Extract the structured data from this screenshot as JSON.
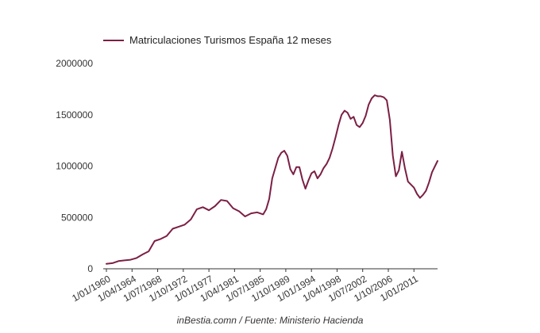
{
  "chart_data": {
    "type": "line",
    "title": "",
    "xlabel": "",
    "ylabel": "",
    "source": "inBestia.comn / Fuente: Ministerio Hacienda",
    "legend": {
      "position": "top-left"
    },
    "grid": false,
    "ylim": [
      0,
      2000000
    ],
    "xlim": [
      "1960-01",
      "2014-12"
    ],
    "y_ticks": [
      0,
      500000,
      1000000,
      1500000,
      2000000
    ],
    "y_tick_labels": [
      "0",
      "500000",
      "1000000",
      "1500000",
      "2000000"
    ],
    "x_ticks": [
      "1960-01",
      "1964-04",
      "1968-07",
      "1972-10",
      "1977-01",
      "1981-04",
      "1985-07",
      "1989-10",
      "1994-01",
      "1998-04",
      "2002-07",
      "2006-10",
      "2011-01"
    ],
    "x_tick_labels": [
      "1/01/1960",
      "1/04/1964",
      "1/07/1968",
      "1/10/1972",
      "1/01/1977",
      "1/04/1981",
      "1/07/1985",
      "1/10/1989",
      "1/01/1994",
      "1/04/1998",
      "1/07/2002",
      "1/10/2006",
      "1/01/2011"
    ],
    "colors": {
      "series": "#7b1f45",
      "axis": "#333333"
    },
    "series": [
      {
        "name": "Matriculaciones Turismos España 12 meses",
        "x": [
          "1960-01",
          "1961-01",
          "1962-01",
          "1963-01",
          "1964-01",
          "1965-01",
          "1966-01",
          "1967-01",
          "1968-01",
          "1969-01",
          "1970-01",
          "1971-01",
          "1972-01",
          "1973-01",
          "1974-01",
          "1975-01",
          "1976-01",
          "1977-01",
          "1978-01",
          "1979-01",
          "1980-01",
          "1981-01",
          "1982-01",
          "1983-01",
          "1984-01",
          "1985-01",
          "1986-01",
          "1986-07",
          "1987-01",
          "1987-07",
          "1988-01",
          "1988-07",
          "1989-01",
          "1989-07",
          "1990-01",
          "1990-07",
          "1991-01",
          "1991-07",
          "1992-01",
          "1992-07",
          "1993-01",
          "1993-07",
          "1994-01",
          "1994-07",
          "1995-01",
          "1995-07",
          "1996-01",
          "1996-07",
          "1997-01",
          "1997-07",
          "1998-01",
          "1998-07",
          "1999-01",
          "1999-07",
          "2000-01",
          "2000-07",
          "2001-01",
          "2001-07",
          "2002-01",
          "2002-07",
          "2003-01",
          "2003-07",
          "2004-01",
          "2004-07",
          "2005-01",
          "2005-07",
          "2006-01",
          "2006-07",
          "2007-01",
          "2007-07",
          "2008-01",
          "2008-07",
          "2009-01",
          "2009-07",
          "2010-01",
          "2010-07",
          "2011-01",
          "2011-07",
          "2012-01",
          "2012-07",
          "2013-01",
          "2013-07",
          "2014-01",
          "2014-07",
          "2014-12"
        ],
        "y": [
          48000,
          55000,
          75000,
          82000,
          88000,
          105000,
          140000,
          170000,
          270000,
          290000,
          320000,
          390000,
          410000,
          430000,
          480000,
          580000,
          600000,
          570000,
          610000,
          670000,
          660000,
          590000,
          560000,
          510000,
          540000,
          550000,
          530000,
          580000,
          680000,
          880000,
          980000,
          1080000,
          1130000,
          1150000,
          1100000,
          970000,
          920000,
          990000,
          990000,
          870000,
          780000,
          860000,
          930000,
          950000,
          880000,
          920000,
          980000,
          1020000,
          1080000,
          1170000,
          1280000,
          1400000,
          1500000,
          1540000,
          1520000,
          1460000,
          1480000,
          1400000,
          1380000,
          1420000,
          1490000,
          1600000,
          1660000,
          1690000,
          1680000,
          1680000,
          1670000,
          1640000,
          1450000,
          1100000,
          900000,
          960000,
          1140000,
          980000,
          850000,
          820000,
          790000,
          730000,
          690000,
          720000,
          760000,
          840000,
          940000,
          1000000,
          1050000
        ]
      }
    ]
  }
}
